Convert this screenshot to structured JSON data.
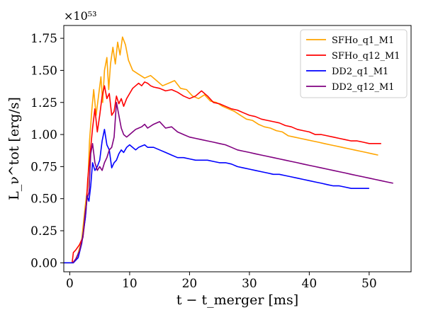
{
  "chart_data": {
    "type": "line",
    "multiplier_label": "×10⁵³",
    "xlabel": "t − t_merger [ms]",
    "ylabel": "L_ν^tot [erg/s]",
    "xlim": [
      -1,
      57
    ],
    "ylim": [
      -0.07,
      1.85
    ],
    "x_ticks": [
      0,
      10,
      20,
      30,
      40,
      50
    ],
    "x_tick_labels": [
      "0",
      "10",
      "20",
      "30",
      "40",
      "50"
    ],
    "y_ticks": [
      0.0,
      0.25,
      0.5,
      0.75,
      1.0,
      1.25,
      1.5,
      1.75
    ],
    "y_tick_labels": [
      "0.00",
      "0.25",
      "0.50",
      "0.75",
      "1.00",
      "1.25",
      "1.50",
      "1.75"
    ],
    "grid": false,
    "legend_position": "top-right",
    "series": [
      {
        "name": "SFHo_q1_M1",
        "color": "#FFA500",
        "points": [
          [
            -1,
            0
          ],
          [
            0.6,
            0
          ],
          [
            1.2,
            0.04
          ],
          [
            2,
            0.18
          ],
          [
            2.6,
            0.45
          ],
          [
            3,
            0.6
          ],
          [
            3.3,
            0.95
          ],
          [
            3.7,
            1.2
          ],
          [
            4,
            1.35
          ],
          [
            4.4,
            1.15
          ],
          [
            4.8,
            1.3
          ],
          [
            5.2,
            1.45
          ],
          [
            5.5,
            1.25
          ],
          [
            5.8,
            1.5
          ],
          [
            6.2,
            1.6
          ],
          [
            6.5,
            1.35
          ],
          [
            6.8,
            1.55
          ],
          [
            7.2,
            1.68
          ],
          [
            7.6,
            1.55
          ],
          [
            8,
            1.72
          ],
          [
            8.4,
            1.62
          ],
          [
            8.8,
            1.76
          ],
          [
            9.3,
            1.7
          ],
          [
            9.8,
            1.58
          ],
          [
            10.5,
            1.5
          ],
          [
            11.5,
            1.47
          ],
          [
            12.5,
            1.44
          ],
          [
            13.5,
            1.46
          ],
          [
            14.5,
            1.42
          ],
          [
            15.5,
            1.38
          ],
          [
            16.5,
            1.4
          ],
          [
            17.5,
            1.42
          ],
          [
            18.5,
            1.36
          ],
          [
            19.5,
            1.35
          ],
          [
            20.5,
            1.3
          ],
          [
            21.5,
            1.28
          ],
          [
            22.5,
            1.31
          ],
          [
            23.5,
            1.26
          ],
          [
            24.5,
            1.25
          ],
          [
            25.5,
            1.22
          ],
          [
            26.5,
            1.2
          ],
          [
            27.5,
            1.18
          ],
          [
            28.5,
            1.15
          ],
          [
            29.5,
            1.12
          ],
          [
            30.5,
            1.11
          ],
          [
            31.5,
            1.08
          ],
          [
            32.5,
            1.06
          ],
          [
            33.5,
            1.05
          ],
          [
            34.5,
            1.03
          ],
          [
            35.5,
            1.02
          ],
          [
            36.5,
            0.99
          ],
          [
            37.5,
            0.98
          ],
          [
            38.5,
            0.97
          ],
          [
            39.5,
            0.96
          ],
          [
            40.5,
            0.95
          ],
          [
            41.5,
            0.94
          ],
          [
            42.5,
            0.93
          ],
          [
            43.5,
            0.92
          ],
          [
            44.5,
            0.91
          ],
          [
            45.5,
            0.9
          ],
          [
            46.5,
            0.89
          ],
          [
            47.5,
            0.88
          ],
          [
            48.5,
            0.87
          ],
          [
            49.5,
            0.86
          ],
          [
            50.5,
            0.85
          ],
          [
            51.5,
            0.84
          ]
        ]
      },
      {
        "name": "SFHo_q12_M1",
        "color": "#FF0000",
        "points": [
          [
            0.4,
            0
          ],
          [
            0.6,
            0.08
          ],
          [
            1,
            0.1
          ],
          [
            1.6,
            0.14
          ],
          [
            2.2,
            0.2
          ],
          [
            2.7,
            0.4
          ],
          [
            3,
            0.65
          ],
          [
            3.4,
            0.85
          ],
          [
            3.8,
            1.05
          ],
          [
            4.2,
            1.2
          ],
          [
            4.6,
            1.02
          ],
          [
            5,
            1.15
          ],
          [
            5.4,
            1.3
          ],
          [
            5.8,
            1.38
          ],
          [
            6.2,
            1.28
          ],
          [
            6.6,
            1.32
          ],
          [
            7,
            1.15
          ],
          [
            7.4,
            1.18
          ],
          [
            7.8,
            1.3
          ],
          [
            8.2,
            1.24
          ],
          [
            8.6,
            1.28
          ],
          [
            9,
            1.22
          ],
          [
            9.5,
            1.28
          ],
          [
            10,
            1.32
          ],
          [
            10.5,
            1.36
          ],
          [
            11,
            1.38
          ],
          [
            11.5,
            1.4
          ],
          [
            12,
            1.38
          ],
          [
            12.5,
            1.41
          ],
          [
            13,
            1.4
          ],
          [
            13.5,
            1.38
          ],
          [
            14,
            1.37
          ],
          [
            15,
            1.36
          ],
          [
            16,
            1.34
          ],
          [
            17,
            1.35
          ],
          [
            18,
            1.33
          ],
          [
            19,
            1.3
          ],
          [
            20,
            1.28
          ],
          [
            21,
            1.3
          ],
          [
            22,
            1.34
          ],
          [
            23,
            1.3
          ],
          [
            24,
            1.25
          ],
          [
            25,
            1.24
          ],
          [
            26,
            1.22
          ],
          [
            27,
            1.2
          ],
          [
            28,
            1.19
          ],
          [
            29,
            1.17
          ],
          [
            30,
            1.15
          ],
          [
            31,
            1.14
          ],
          [
            32,
            1.12
          ],
          [
            33,
            1.11
          ],
          [
            34,
            1.1
          ],
          [
            35,
            1.09
          ],
          [
            36,
            1.07
          ],
          [
            37,
            1.06
          ],
          [
            38,
            1.04
          ],
          [
            39,
            1.03
          ],
          [
            40,
            1.02
          ],
          [
            41,
            1.0
          ],
          [
            42,
            1.0
          ],
          [
            43,
            0.99
          ],
          [
            44,
            0.98
          ],
          [
            45,
            0.97
          ],
          [
            46,
            0.96
          ],
          [
            47,
            0.95
          ],
          [
            48,
            0.95
          ],
          [
            49,
            0.94
          ],
          [
            50,
            0.93
          ],
          [
            51,
            0.93
          ],
          [
            52,
            0.93
          ]
        ]
      },
      {
        "name": "DD2_q1_M1",
        "color": "#0000FF",
        "points": [
          [
            -1,
            0
          ],
          [
            0.6,
            0
          ],
          [
            1.4,
            0.04
          ],
          [
            2,
            0.15
          ],
          [
            2.6,
            0.35
          ],
          [
            2.9,
            0.52
          ],
          [
            3.2,
            0.48
          ],
          [
            3.5,
            0.6
          ],
          [
            3.8,
            0.78
          ],
          [
            4.2,
            0.72
          ],
          [
            4.6,
            0.75
          ],
          [
            5,
            0.8
          ],
          [
            5.4,
            0.95
          ],
          [
            5.8,
            1.04
          ],
          [
            6.2,
            0.92
          ],
          [
            6.6,
            0.88
          ],
          [
            7,
            0.74
          ],
          [
            7.4,
            0.78
          ],
          [
            7.8,
            0.8
          ],
          [
            8.2,
            0.85
          ],
          [
            8.6,
            0.88
          ],
          [
            9,
            0.86
          ],
          [
            9.5,
            0.9
          ],
          [
            10,
            0.92
          ],
          [
            10.5,
            0.9
          ],
          [
            11,
            0.88
          ],
          [
            11.5,
            0.9
          ],
          [
            12,
            0.91
          ],
          [
            12.5,
            0.92
          ],
          [
            13,
            0.9
          ],
          [
            14,
            0.9
          ],
          [
            15,
            0.88
          ],
          [
            16,
            0.86
          ],
          [
            17,
            0.84
          ],
          [
            18,
            0.82
          ],
          [
            19,
            0.82
          ],
          [
            20,
            0.81
          ],
          [
            21,
            0.8
          ],
          [
            22,
            0.8
          ],
          [
            23,
            0.8
          ],
          [
            24,
            0.79
          ],
          [
            25,
            0.78
          ],
          [
            26,
            0.78
          ],
          [
            27,
            0.77
          ],
          [
            28,
            0.75
          ],
          [
            29,
            0.74
          ],
          [
            30,
            0.73
          ],
          [
            31,
            0.72
          ],
          [
            32,
            0.71
          ],
          [
            33,
            0.7
          ],
          [
            34,
            0.69
          ],
          [
            35,
            0.69
          ],
          [
            36,
            0.68
          ],
          [
            37,
            0.67
          ],
          [
            38,
            0.66
          ],
          [
            39,
            0.65
          ],
          [
            40,
            0.64
          ],
          [
            41,
            0.63
          ],
          [
            42,
            0.62
          ],
          [
            43,
            0.61
          ],
          [
            44,
            0.6
          ],
          [
            45,
            0.6
          ],
          [
            46,
            0.59
          ],
          [
            47,
            0.58
          ],
          [
            48,
            0.58
          ],
          [
            49,
            0.58
          ],
          [
            50,
            0.58
          ]
        ]
      },
      {
        "name": "DD2_q12_M1",
        "color": "#800080",
        "points": [
          [
            0.5,
            0
          ],
          [
            1,
            0.03
          ],
          [
            1.6,
            0.09
          ],
          [
            2.2,
            0.2
          ],
          [
            2.6,
            0.4
          ],
          [
            2.9,
            0.5
          ],
          [
            3.2,
            0.55
          ],
          [
            3.5,
            0.85
          ],
          [
            3.8,
            0.93
          ],
          [
            4.2,
            0.78
          ],
          [
            4.6,
            0.72
          ],
          [
            5,
            0.75
          ],
          [
            5.4,
            0.72
          ],
          [
            5.8,
            0.78
          ],
          [
            6.2,
            0.82
          ],
          [
            6.6,
            0.88
          ],
          [
            7,
            0.9
          ],
          [
            7.4,
            0.98
          ],
          [
            7.8,
            1.25
          ],
          [
            8.2,
            1.15
          ],
          [
            8.6,
            1.05
          ],
          [
            9,
            1.0
          ],
          [
            9.5,
            0.98
          ],
          [
            10,
            1.0
          ],
          [
            10.5,
            1.02
          ],
          [
            11,
            1.04
          ],
          [
            11.5,
            1.05
          ],
          [
            12,
            1.06
          ],
          [
            12.5,
            1.08
          ],
          [
            13,
            1.05
          ],
          [
            14,
            1.08
          ],
          [
            15,
            1.1
          ],
          [
            16,
            1.05
          ],
          [
            17,
            1.06
          ],
          [
            18,
            1.02
          ],
          [
            19,
            1.0
          ],
          [
            20,
            0.98
          ],
          [
            21,
            0.97
          ],
          [
            22,
            0.96
          ],
          [
            23,
            0.95
          ],
          [
            24,
            0.94
          ],
          [
            25,
            0.93
          ],
          [
            26,
            0.92
          ],
          [
            27,
            0.9
          ],
          [
            28,
            0.88
          ],
          [
            29,
            0.87
          ],
          [
            30,
            0.86
          ],
          [
            31,
            0.85
          ],
          [
            32,
            0.84
          ],
          [
            33,
            0.83
          ],
          [
            34,
            0.82
          ],
          [
            35,
            0.81
          ],
          [
            36,
            0.8
          ],
          [
            37,
            0.79
          ],
          [
            38,
            0.78
          ],
          [
            39,
            0.77
          ],
          [
            40,
            0.76
          ],
          [
            41,
            0.75
          ],
          [
            42,
            0.74
          ],
          [
            43,
            0.73
          ],
          [
            44,
            0.72
          ],
          [
            45,
            0.71
          ],
          [
            46,
            0.7
          ],
          [
            47,
            0.69
          ],
          [
            48,
            0.68
          ],
          [
            49,
            0.67
          ],
          [
            50,
            0.66
          ],
          [
            51,
            0.65
          ],
          [
            52,
            0.64
          ],
          [
            53,
            0.63
          ],
          [
            54,
            0.62
          ]
        ]
      }
    ]
  }
}
